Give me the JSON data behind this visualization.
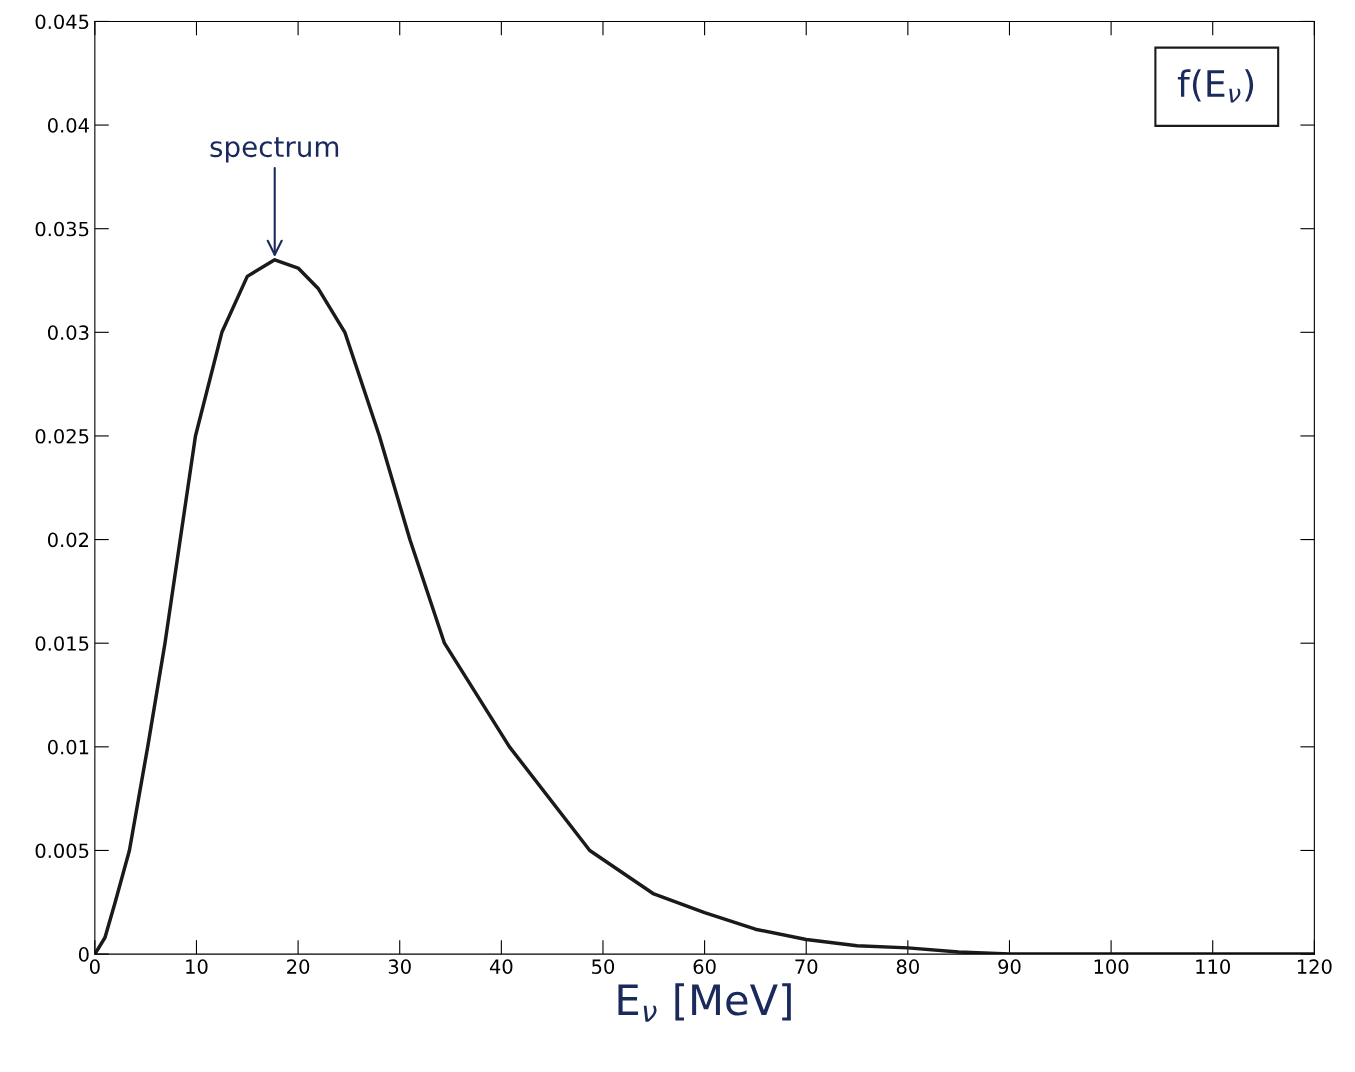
{
  "chart_data": {
    "type": "line",
    "xlabel": "E$_{ν}$ [MeV]",
    "x": [
      0,
      1,
      2,
      3.4,
      5.2,
      6.9,
      8.4,
      9.9,
      12.5,
      15,
      17.7,
      20,
      22,
      24.6,
      28,
      31,
      34.4,
      40.8,
      48.7,
      55,
      60,
      65,
      70,
      75,
      80,
      85,
      90,
      100,
      110,
      120
    ],
    "series": [
      {
        "color": "#1a1a1a",
        "values": [
          0,
          0.0008,
          0.0025,
          0.005,
          0.01,
          0.015,
          0.02,
          0.025,
          0.03,
          0.0327,
          0.0335,
          0.0331,
          0.0321,
          0.03,
          0.025,
          0.02,
          0.015,
          0.01,
          0.005,
          0.0029,
          0.002,
          0.0012,
          0.0007,
          0.0004,
          0.0003,
          0.0001,
          0,
          0,
          0,
          0
        ]
      }
    ],
    "xlim": [
      0,
      120
    ],
    "xticks": [
      0,
      10,
      20,
      30,
      40,
      50,
      60,
      70,
      80,
      90,
      100,
      110,
      120
    ],
    "ylim": [
      0,
      0.045
    ],
    "yticks": [
      0,
      0.005,
      0.01,
      0.015,
      0.02,
      0.025,
      0.03,
      0.035,
      0.04,
      0.045
    ],
    "grid": false,
    "marker": "none",
    "line_style": "solid",
    "annotations": [
      {
        "text": "spectrum",
        "x": 17.7,
        "y": 0.0335
      },
      "f(E$_{ν}$)"
    ]
  }
}
